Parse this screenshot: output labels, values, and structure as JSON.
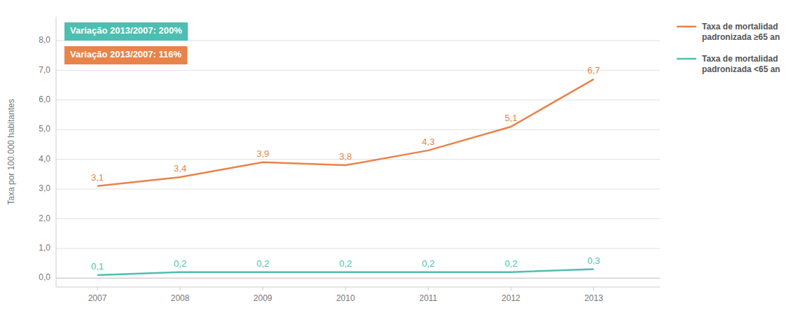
{
  "chart_data": {
    "type": "line",
    "y_label": "Taxa por 100.000 habitantes",
    "x": [
      2007,
      2008,
      2009,
      2010,
      2011,
      2012,
      2013
    ],
    "xlim": [
      2006.5,
      2013.8
    ],
    "xticks": [
      2007,
      2008,
      2009,
      2010,
      2011,
      2012,
      2013
    ],
    "ylim": [
      -0.3,
      8.8
    ],
    "yticks": [
      {
        "value": 0.0,
        "label": "0,0"
      },
      {
        "value": 1.0,
        "label": "1,0"
      },
      {
        "value": 2.0,
        "label": "2,0"
      },
      {
        "value": 3.0,
        "label": "3,0"
      },
      {
        "value": 4.0,
        "label": "4,0"
      },
      {
        "value": 5.0,
        "label": "5,0"
      },
      {
        "value": 6.0,
        "label": "6,0"
      },
      {
        "value": 7.0,
        "label": "7,0"
      },
      {
        "value": 8.0,
        "label": "8,0"
      }
    ],
    "grid": true,
    "legend": "right",
    "data_labels": true,
    "series": [
      {
        "name": "Taxa de mortalidad\npadronizada ≥65 an",
        "color": "#E8834A",
        "values": [
          3.1,
          3.4,
          3.9,
          3.8,
          4.3,
          5.1,
          6.7
        ],
        "value_labels": [
          "3,1",
          "3,4",
          "3,9",
          "3,8",
          "4,3",
          "5,1",
          "6,7"
        ]
      },
      {
        "name": "Taxa de mortalidad\npadronizada <65 an",
        "color": "#4DBFB0",
        "values": [
          0.1,
          0.2,
          0.2,
          0.2,
          0.2,
          0.2,
          0.3
        ],
        "value_labels": [
          "0,1",
          "0,2",
          "0,2",
          "0,2",
          "0,2",
          "0,2",
          "0,3"
        ]
      }
    ],
    "annotations": [
      {
        "text": "Variação 2013/2007: 200%",
        "color": "#4DBFB0"
      },
      {
        "text": "Variação 2013/2007: 116%",
        "color": "#E8834A"
      }
    ]
  }
}
